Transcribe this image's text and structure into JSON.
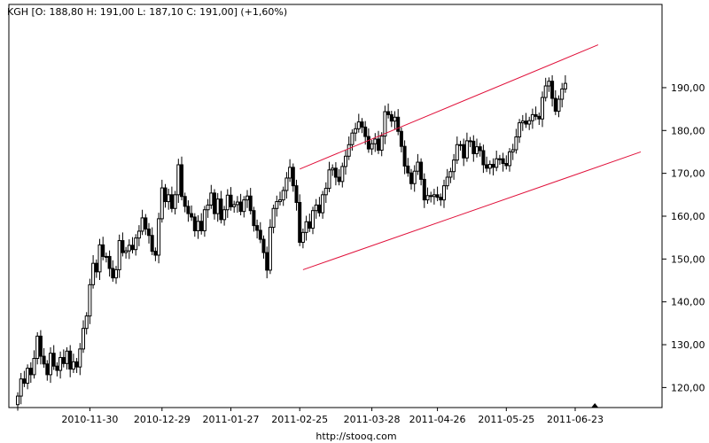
{
  "chart_data": {
    "type": "candlestick",
    "title": "KGH [O: 188,80  H: 191,00  L: 187,10  C: 191,00] (+1,60%)",
    "footer": "http://stooq.com",
    "ylim": [
      114,
      200
    ],
    "y_ticks": [
      "120,00",
      "130,00",
      "140,00",
      "150,00",
      "160,00",
      "170,00",
      "180,00",
      "190,00"
    ],
    "y_tick_values": [
      120,
      130,
      140,
      150,
      160,
      170,
      180,
      190
    ],
    "x_ticks": [
      "2010-11-30",
      "2010-12-29",
      "2011-01-27",
      "2011-02-25",
      "2011-03-28",
      "2011-04-26",
      "2011-05-25",
      "2011-06-23"
    ],
    "x_tick_indices": [
      22,
      44,
      65,
      86,
      108,
      128,
      149,
      170
    ],
    "grid": false,
    "candle_up_color": "#ffffff",
    "candle_down_color": "#000000",
    "trendline_color": "#e0103a",
    "marker": "triangle",
    "marker_index": 176,
    "channel": [
      {
        "x": [
          86,
          177
        ],
        "y": [
          171,
          200
        ]
      },
      {
        "x": [
          87,
          190
        ],
        "y": [
          147.5,
          175
        ]
      }
    ],
    "closes": [
      118,
      122,
      121,
      124.5,
      123,
      126.8,
      132,
      127.3,
      125.5,
      123,
      128,
      125,
      124,
      127,
      125.6,
      128.5,
      124.3,
      126,
      124.8,
      129,
      133.8,
      136.7,
      144,
      149,
      147,
      153.3,
      150.6,
      150.6,
      147.8,
      145.6,
      147.5,
      154.3,
      151.5,
      151.9,
      153.2,
      152.2,
      154.9,
      156.5,
      159.6,
      157,
      155.5,
      151.8,
      150.9,
      159.4,
      166.6,
      163.4,
      165,
      161.8,
      165,
      172,
      164.6,
      162.3,
      160.6,
      159.8,
      156.6,
      158.8,
      156.6,
      161.5,
      162.6,
      165.4,
      160.6,
      164,
      159.2,
      161.5,
      164.9,
      162.2,
      162.7,
      163.3,
      161.1,
      163.8,
      164.7,
      161.3,
      157.8,
      156.7,
      154.6,
      151.5,
      147.4,
      157.4,
      161.8,
      163.4,
      163.8,
      166,
      168.9,
      171.4,
      167.1,
      163.2,
      153.9,
      156.2,
      158.7,
      157.2,
      161.3,
      162.6,
      160.8,
      165,
      166.5,
      170.8,
      171.2,
      169.1,
      168.1,
      171.6,
      174,
      176.7,
      179.4,
      180.4,
      182,
      180.8,
      178.6,
      175.7,
      176.9,
      178,
      175.4,
      178.7,
      184.4,
      183.7,
      182.2,
      183.1,
      179.8,
      176.3,
      171.7,
      170.1,
      167.6,
      170.5,
      172.6,
      168.6,
      163.8,
      164.8,
      164.6,
      165,
      164.4,
      163.8,
      167.1,
      169.1,
      170.4,
      173.1,
      176.7,
      176.7,
      173.6,
      177.6,
      177.5,
      174.6,
      176.2,
      175.3,
      172,
      171.2,
      172.1,
      171.4,
      173.4,
      173.4,
      172.3,
      171.8,
      175,
      175.5,
      178.5,
      181.8,
      182.2,
      181.5,
      182.3,
      183.7,
      183.3,
      182.7,
      187.7,
      190.4,
      191.5,
      187.5,
      184.5,
      187.3,
      189.7,
      191
    ]
  }
}
